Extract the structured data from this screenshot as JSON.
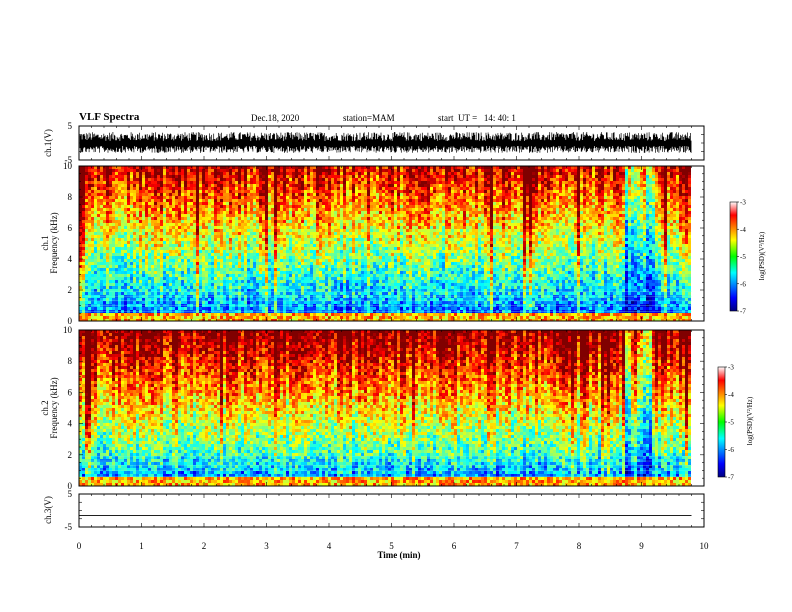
{
  "header": {
    "title": "VLF Spectra",
    "date": "Dec.18, 2020",
    "station": "station=MAM",
    "start": "start  UT =   14: 40: 1"
  },
  "chart_data": [
    {
      "id": "ch1",
      "type": "line",
      "ylabel": "ch.1(V)",
      "ylim": [
        -5,
        5
      ],
      "yticks": [
        "5",
        "-5"
      ],
      "description_values": "dense noisy waveform between about -2 and 3 V"
    },
    {
      "id": "spec1",
      "type": "heatmap",
      "ylabel_line1": "ch.1",
      "ylabel_line2": "Frequency  (kHz)",
      "ylim": [
        0,
        10
      ],
      "yticks": [
        "0",
        "2",
        "4",
        "6",
        "8",
        "10"
      ],
      "colorbar": {
        "label": "log(PSD)(V²/Hz)",
        "range": [
          -7,
          -3
        ],
        "ticks": [
          "-3",
          "-4",
          "-5",
          "-6",
          "-7"
        ]
      }
    },
    {
      "id": "spec2",
      "type": "heatmap",
      "ylabel_line1": "ch.2",
      "ylabel_line2": "Frequency  (kHz)",
      "ylim": [
        0,
        10
      ],
      "yticks": [
        "0",
        "2",
        "4",
        "6",
        "8",
        "10"
      ],
      "colorbar": {
        "label": "log(PSD)(V²/Hz)",
        "range": [
          -7,
          -3
        ],
        "ticks": [
          "-3",
          "-4",
          "-5",
          "-6",
          "-7"
        ]
      }
    },
    {
      "id": "ch3",
      "type": "line",
      "ylabel": "ch.3(V)",
      "ylim": [
        -5,
        5
      ],
      "yticks": [
        "5",
        "-5"
      ],
      "x": [
        0,
        9.8
      ],
      "y": [
        -1.5,
        -1.5
      ]
    }
  ],
  "xaxis": {
    "label": "Time  (min)",
    "range": [
      0,
      10
    ],
    "ticks": [
      "0",
      "1",
      "2",
      "3",
      "4",
      "5",
      "6",
      "7",
      "8",
      "9",
      "10"
    ],
    "data_end": 9.8
  }
}
